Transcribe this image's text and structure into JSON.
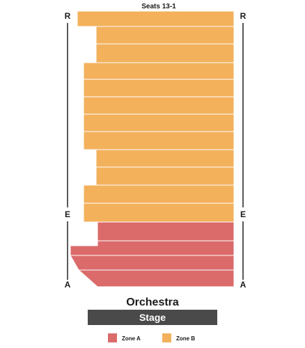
{
  "section": {
    "title": "Seats 13-1",
    "name": "Orchestra"
  },
  "row_markers": {
    "top": "R",
    "middle": "E",
    "bottom": "A"
  },
  "stage": {
    "label": "Stage"
  },
  "zones": [
    {
      "name": "Zone A",
      "color": "#db6b6b"
    },
    {
      "name": "Zone B",
      "color": "#f3b15c"
    }
  ],
  "colors": {
    "stage": "#4a4a4a",
    "divider": "#ffffff",
    "row_line": "#222222"
  }
}
